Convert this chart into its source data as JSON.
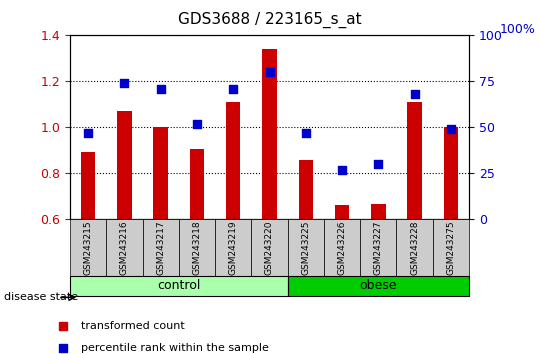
{
  "title": "GDS3688 / 223165_s_at",
  "samples": [
    "GSM243215",
    "GSM243216",
    "GSM243217",
    "GSM243218",
    "GSM243219",
    "GSM243220",
    "GSM243225",
    "GSM243226",
    "GSM243227",
    "GSM243228",
    "GSM243275"
  ],
  "transformed_count": [
    0.895,
    1.07,
    1.0,
    0.905,
    1.11,
    1.34,
    0.86,
    0.665,
    0.668,
    1.11,
    1.0
  ],
  "percentile_rank": [
    47,
    74,
    71,
    52,
    71,
    80,
    47,
    27,
    30,
    68,
    49
  ],
  "ylim_left": [
    0.6,
    1.4
  ],
  "ylim_right": [
    0,
    100
  ],
  "yticks_left": [
    0.6,
    0.8,
    1.0,
    1.2,
    1.4
  ],
  "yticks_right": [
    0,
    25,
    50,
    75,
    100
  ],
  "bar_color": "#cc0000",
  "dot_color": "#0000cc",
  "bar_width": 0.4,
  "groups": [
    {
      "label": "control",
      "indices": [
        0,
        1,
        2,
        3,
        4,
        5
      ],
      "color": "#aaffaa"
    },
    {
      "label": "obese",
      "indices": [
        6,
        7,
        8,
        9,
        10
      ],
      "color": "#00cc00"
    }
  ],
  "group_label": "disease state",
  "legend_bar_label": "transformed count",
  "legend_dot_label": "percentile rank within the sample",
  "right_axis_label": "100%",
  "tick_color_left": "#cc0000",
  "tick_color_right": "#0000cc",
  "tick_area_color": "#cccccc"
}
